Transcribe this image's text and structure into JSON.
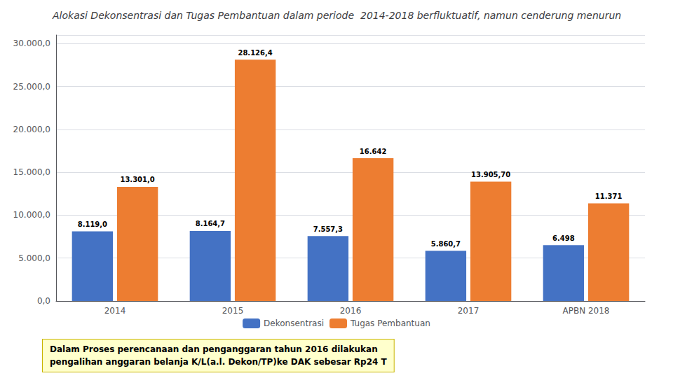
{
  "chart_data": {
    "type": "bar",
    "title": "Alokasi Dekonsentrasi dan Tugas Pembantuan dalam periode  2014-2018 berfluktuatif, namun cenderung menurun",
    "categories": [
      "2014",
      "2015",
      "2016",
      "2017",
      "APBN 2018"
    ],
    "series": [
      {
        "name": "Dekonsentrasi",
        "color": "#4472C4",
        "values": [
          8119.0,
          8164.7,
          7557.3,
          5860.7,
          6498.0
        ],
        "value_labels": [
          "8.119,0",
          "8.164,7",
          "7.557,3",
          "5.860,7",
          "6.498"
        ]
      },
      {
        "name": "Tugas Pembantuan",
        "color": "#ED7D31",
        "values": [
          13301.0,
          28126.4,
          16642.0,
          13905.7,
          11371.0
        ],
        "value_labels": [
          "13.301,0",
          "28.126,4",
          "16.642",
          "13.905,70",
          "11.371"
        ]
      }
    ],
    "ylim": [
      0,
      31000
    ],
    "yticks": [
      {
        "value": 0,
        "label": "0,0"
      },
      {
        "value": 5000,
        "label": "5.000,0"
      },
      {
        "value": 10000,
        "label": "10.000,0"
      },
      {
        "value": 15000,
        "label": "15.000,0"
      },
      {
        "value": 20000,
        "label": "20.000,0"
      },
      {
        "value": 25000,
        "label": "25.000,0"
      },
      {
        "value": 30000,
        "label": "30.000,0"
      }
    ],
    "grid": true,
    "data_labels": true,
    "legend": "bottom",
    "annotations": [
      "Dalam Proses perencanaan dan penganggaran tahun 2016 dilakukan",
      "pengalihan anggaran belanja K/L(a.l. Dekon/TP)ke DAK sebesar Rp24 T"
    ]
  }
}
